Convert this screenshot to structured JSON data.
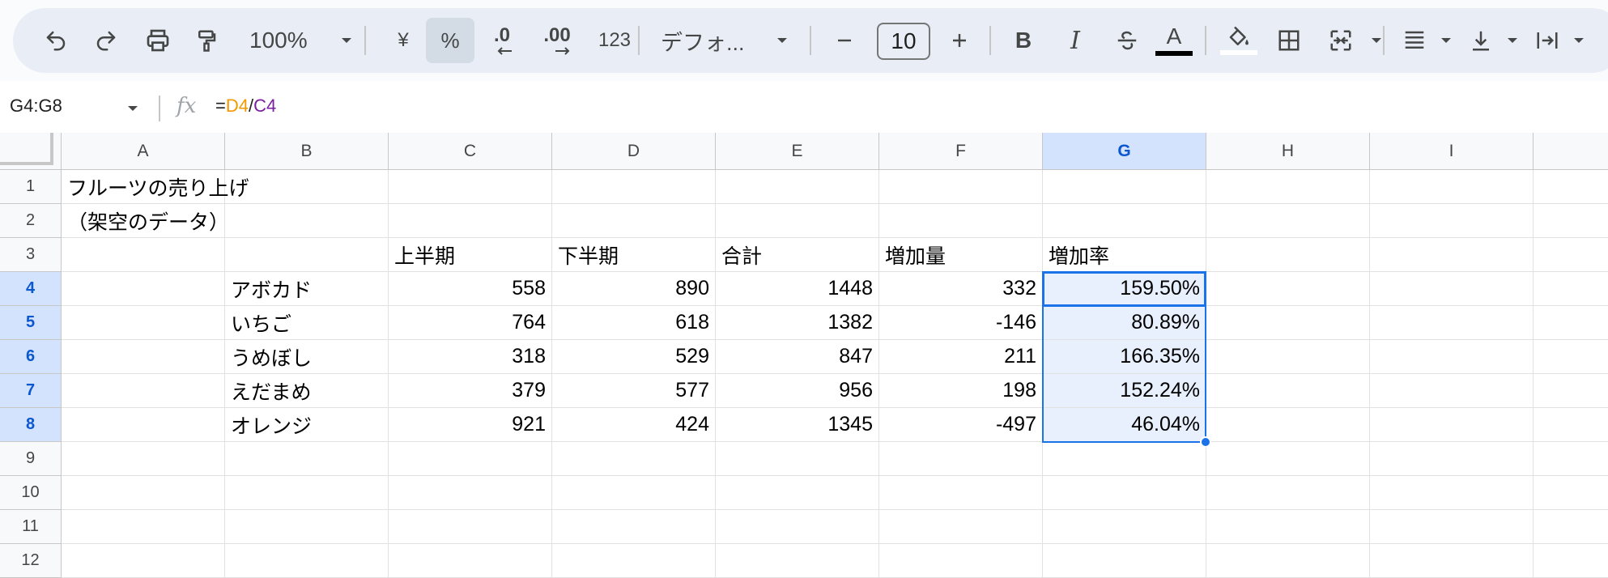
{
  "toolbar": {
    "zoom": "100%",
    "currency_symbol": "¥",
    "percent_symbol": "%",
    "decrease_decimal": ".0",
    "increase_decimal": ".00",
    "more_formats": "123",
    "font_name": "デフォ...",
    "font_size": "10",
    "bold_label": "B",
    "italic_label": "I",
    "text_color_label": "A"
  },
  "formula_bar": {
    "name_box": "G4:G8",
    "fx_label": "fx",
    "formula_prefix": "=",
    "formula_ref1": "D4",
    "formula_op": "/",
    "formula_ref2": "C4"
  },
  "sheet": {
    "columns": [
      "A",
      "B",
      "C",
      "D",
      "E",
      "F",
      "G",
      "H",
      "I"
    ],
    "rows": [
      "1",
      "2",
      "3",
      "4",
      "5",
      "6",
      "7",
      "8",
      "9",
      "10",
      "11",
      "12"
    ],
    "title": "フルーツの売り上げ",
    "subtitle": "（架空のデータ）",
    "headers": [
      "上半期",
      "下半期",
      "合計",
      "増加量",
      "増加率"
    ],
    "data": [
      {
        "name": "アボカド",
        "h1": "558",
        "h2": "890",
        "total": "1448",
        "diff": "332",
        "rate": "159.50%"
      },
      {
        "name": "いちご",
        "h1": "764",
        "h2": "618",
        "total": "1382",
        "diff": "-146",
        "rate": "80.89%"
      },
      {
        "name": "うめぼし",
        "h1": "318",
        "h2": "529",
        "total": "847",
        "diff": "211",
        "rate": "166.35%"
      },
      {
        "name": "えだまめ",
        "h1": "379",
        "h2": "577",
        "total": "956",
        "diff": "198",
        "rate": "152.24%"
      },
      {
        "name": "オレンジ",
        "h1": "921",
        "h2": "424",
        "total": "1345",
        "diff": "-497",
        "rate": "46.04%"
      }
    ]
  },
  "colors": {
    "selection_border": "#1a73e8",
    "selection_fill": "#e8f0fe",
    "header_selected": "#d3e3fd",
    "formula_ref1": "#f29900",
    "formula_ref2": "#7b1fa2"
  }
}
